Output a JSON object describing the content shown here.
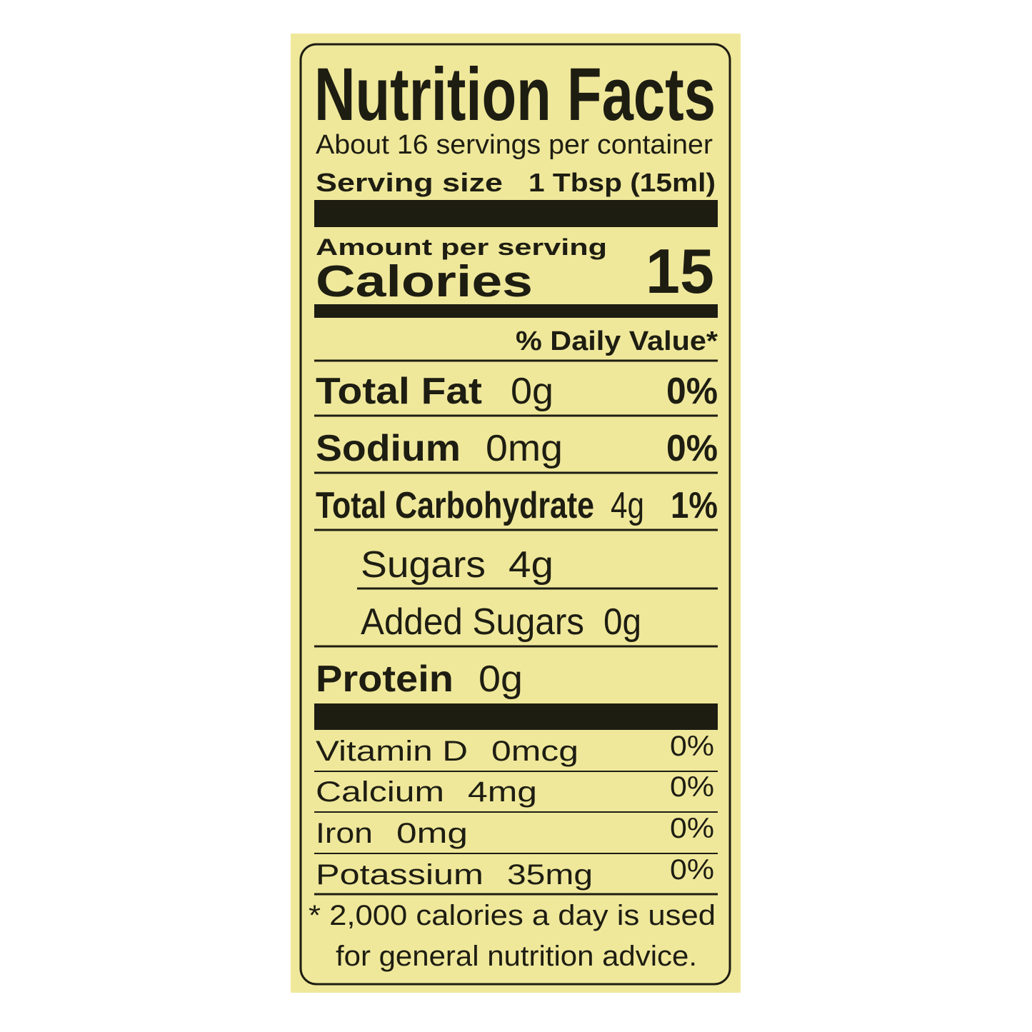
{
  "header": {
    "title": "Nutrition Facts",
    "servings": "About 16 servings per container",
    "serving_size_label": "Serving size",
    "serving_size_value": "1 Tbsp (15ml)"
  },
  "calories": {
    "amount_per_serving": "Amount per serving",
    "label": "Calories",
    "value": 15
  },
  "daily_value_header": "% Daily Value*",
  "nutrients": [
    {
      "name": "Total Fat",
      "amount": "0g",
      "percent": "0%"
    },
    {
      "name": "Sodium",
      "amount": "0mg",
      "percent": "0%"
    },
    {
      "name": "Total Carbohydrate",
      "amount": "4g",
      "percent": "1%"
    },
    {
      "name": "Sugars",
      "amount": "4g"
    },
    {
      "name": "Added Sugars",
      "amount": "0g"
    },
    {
      "name": "Protein",
      "amount": "0g"
    }
  ],
  "vitamins": [
    {
      "name": "Vitamin D",
      "amount": "0mcg",
      "percent": "0%"
    },
    {
      "name": "Calcium",
      "amount": "4mg",
      "percent": "0%"
    },
    {
      "name": "Iron",
      "amount": "0mg",
      "percent": "0%"
    },
    {
      "name": "Potassium",
      "amount": "35mg",
      "percent": "0%"
    }
  ],
  "footnote": [
    "* 2,000 calories a day is used",
    "for general nutrition advice."
  ]
}
